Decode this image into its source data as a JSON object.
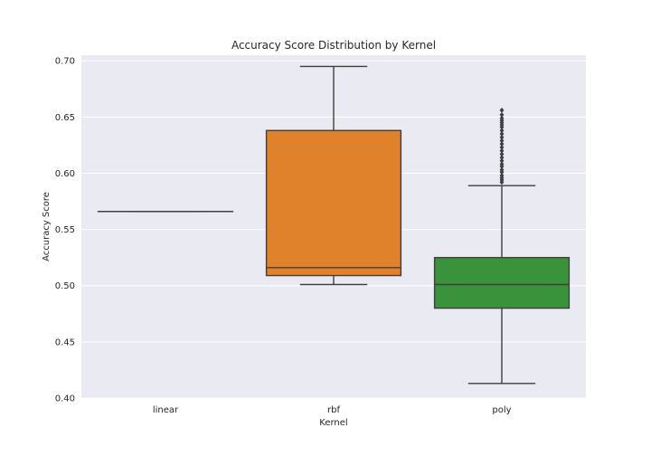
{
  "chart_data": {
    "type": "box",
    "title": "Accuracy Score Distribution by Kernel",
    "xlabel": "Kernel",
    "ylabel": "Accuracy Score",
    "ylim": [
      0.4,
      0.705
    ],
    "yticks": [
      "0.40",
      "0.45",
      "0.50",
      "0.55",
      "0.60",
      "0.65",
      "0.70"
    ],
    "grid": true,
    "background": "#EAEAF2",
    "categories": [
      "linear",
      "rbf",
      "poly"
    ],
    "series": [
      {
        "category": "linear",
        "color": "#1F77B4",
        "whisker_low": 0.566,
        "q1": 0.566,
        "median": 0.566,
        "q3": 0.566,
        "whisker_high": 0.566,
        "outliers": []
      },
      {
        "category": "rbf",
        "color": "#E0812C",
        "whisker_low": 0.501,
        "q1": 0.509,
        "median": 0.516,
        "q3": 0.638,
        "whisker_high": 0.695,
        "outliers": []
      },
      {
        "category": "poly",
        "color": "#3A923A",
        "whisker_low": 0.413,
        "q1": 0.48,
        "median": 0.501,
        "q3": 0.525,
        "whisker_high": 0.589,
        "outliers": [
          0.592,
          0.594,
          0.596,
          0.598,
          0.601,
          0.603,
          0.606,
          0.608,
          0.611,
          0.614,
          0.617,
          0.62,
          0.623,
          0.626,
          0.629,
          0.632,
          0.635,
          0.638,
          0.641,
          0.643,
          0.645,
          0.647,
          0.649,
          0.652,
          0.656
        ]
      }
    ]
  }
}
